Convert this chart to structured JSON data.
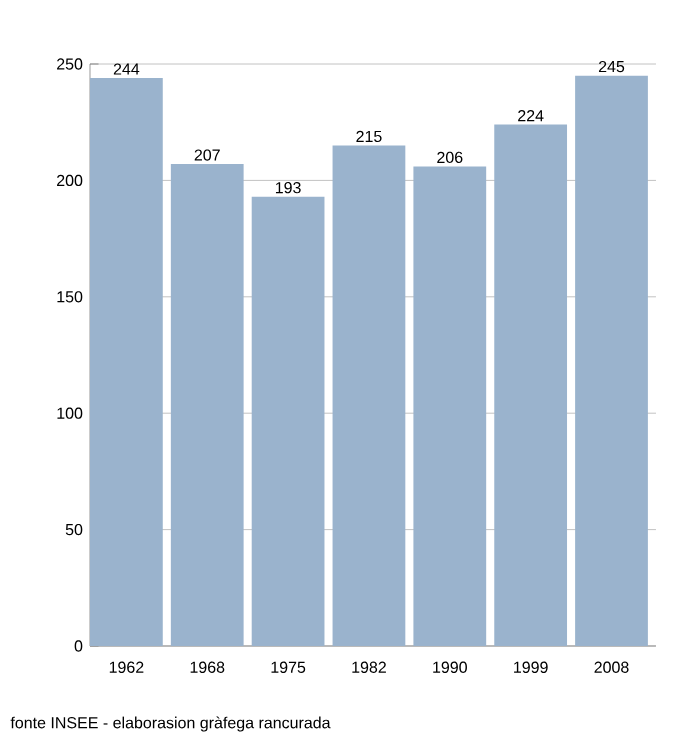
{
  "chart_data": {
    "type": "bar",
    "categories": [
      "1962",
      "1968",
      "1975",
      "1982",
      "1990",
      "1999",
      "2008"
    ],
    "values": [
      244,
      207,
      193,
      215,
      206,
      224,
      245
    ],
    "color": "#9ab3cd",
    "ylim": [
      0,
      250
    ],
    "yticks": [
      0,
      50,
      100,
      150,
      200,
      250
    ],
    "grid": "y",
    "data_labels": true,
    "annotations": [
      "fonte INSEE - elaborasion gràfega rancurada"
    ]
  }
}
